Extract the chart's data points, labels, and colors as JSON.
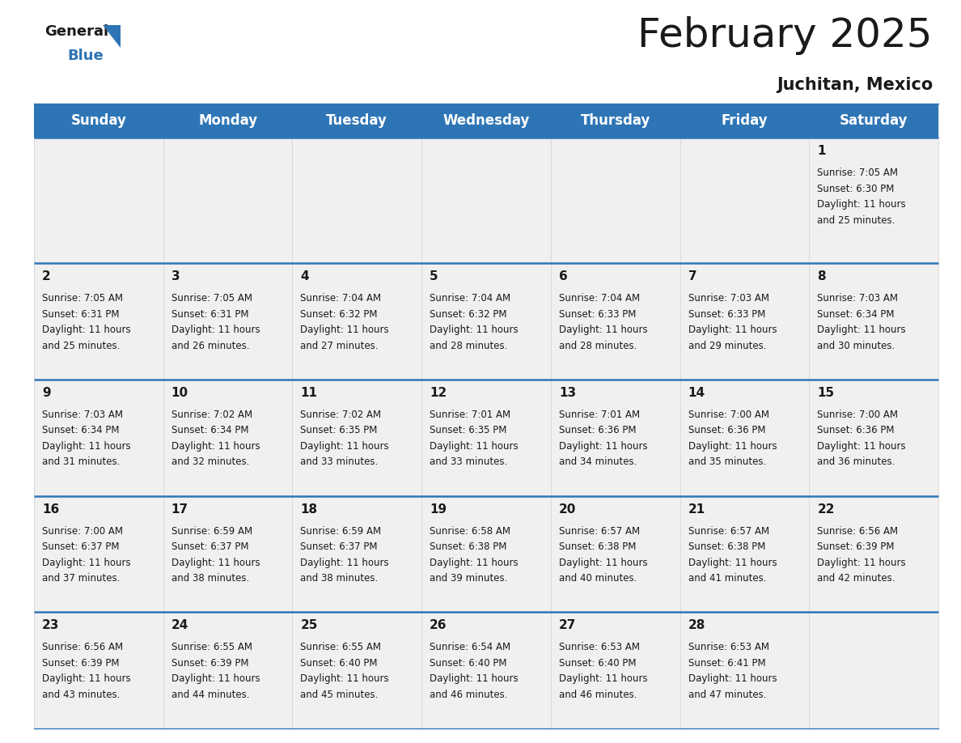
{
  "title": "February 2025",
  "subtitle": "Juchitan, Mexico",
  "header_color": "#2e75b6",
  "header_text_color": "#ffffff",
  "cell_bg": "#f0f0f0",
  "border_color": "#2e75b6",
  "text_color": "#1a1a1a",
  "days_of_week": [
    "Sunday",
    "Monday",
    "Tuesday",
    "Wednesday",
    "Thursday",
    "Friday",
    "Saturday"
  ],
  "calendar_data": [
    [
      null,
      null,
      null,
      null,
      null,
      null,
      {
        "day": 1,
        "sunrise": "7:05 AM",
        "sunset": "6:30 PM",
        "daylight_line1": "Daylight: 11 hours",
        "daylight_line2": "and 25 minutes."
      }
    ],
    [
      {
        "day": 2,
        "sunrise": "7:05 AM",
        "sunset": "6:31 PM",
        "daylight_line1": "Daylight: 11 hours",
        "daylight_line2": "and 25 minutes."
      },
      {
        "day": 3,
        "sunrise": "7:05 AM",
        "sunset": "6:31 PM",
        "daylight_line1": "Daylight: 11 hours",
        "daylight_line2": "and 26 minutes."
      },
      {
        "day": 4,
        "sunrise": "7:04 AM",
        "sunset": "6:32 PM",
        "daylight_line1": "Daylight: 11 hours",
        "daylight_line2": "and 27 minutes."
      },
      {
        "day": 5,
        "sunrise": "7:04 AM",
        "sunset": "6:32 PM",
        "daylight_line1": "Daylight: 11 hours",
        "daylight_line2": "and 28 minutes."
      },
      {
        "day": 6,
        "sunrise": "7:04 AM",
        "sunset": "6:33 PM",
        "daylight_line1": "Daylight: 11 hours",
        "daylight_line2": "and 28 minutes."
      },
      {
        "day": 7,
        "sunrise": "7:03 AM",
        "sunset": "6:33 PM",
        "daylight_line1": "Daylight: 11 hours",
        "daylight_line2": "and 29 minutes."
      },
      {
        "day": 8,
        "sunrise": "7:03 AM",
        "sunset": "6:34 PM",
        "daylight_line1": "Daylight: 11 hours",
        "daylight_line2": "and 30 minutes."
      }
    ],
    [
      {
        "day": 9,
        "sunrise": "7:03 AM",
        "sunset": "6:34 PM",
        "daylight_line1": "Daylight: 11 hours",
        "daylight_line2": "and 31 minutes."
      },
      {
        "day": 10,
        "sunrise": "7:02 AM",
        "sunset": "6:34 PM",
        "daylight_line1": "Daylight: 11 hours",
        "daylight_line2": "and 32 minutes."
      },
      {
        "day": 11,
        "sunrise": "7:02 AM",
        "sunset": "6:35 PM",
        "daylight_line1": "Daylight: 11 hours",
        "daylight_line2": "and 33 minutes."
      },
      {
        "day": 12,
        "sunrise": "7:01 AM",
        "sunset": "6:35 PM",
        "daylight_line1": "Daylight: 11 hours",
        "daylight_line2": "and 33 minutes."
      },
      {
        "day": 13,
        "sunrise": "7:01 AM",
        "sunset": "6:36 PM",
        "daylight_line1": "Daylight: 11 hours",
        "daylight_line2": "and 34 minutes."
      },
      {
        "day": 14,
        "sunrise": "7:00 AM",
        "sunset": "6:36 PM",
        "daylight_line1": "Daylight: 11 hours",
        "daylight_line2": "and 35 minutes."
      },
      {
        "day": 15,
        "sunrise": "7:00 AM",
        "sunset": "6:36 PM",
        "daylight_line1": "Daylight: 11 hours",
        "daylight_line2": "and 36 minutes."
      }
    ],
    [
      {
        "day": 16,
        "sunrise": "7:00 AM",
        "sunset": "6:37 PM",
        "daylight_line1": "Daylight: 11 hours",
        "daylight_line2": "and 37 minutes."
      },
      {
        "day": 17,
        "sunrise": "6:59 AM",
        "sunset": "6:37 PM",
        "daylight_line1": "Daylight: 11 hours",
        "daylight_line2": "and 38 minutes."
      },
      {
        "day": 18,
        "sunrise": "6:59 AM",
        "sunset": "6:37 PM",
        "daylight_line1": "Daylight: 11 hours",
        "daylight_line2": "and 38 minutes."
      },
      {
        "day": 19,
        "sunrise": "6:58 AM",
        "sunset": "6:38 PM",
        "daylight_line1": "Daylight: 11 hours",
        "daylight_line2": "and 39 minutes."
      },
      {
        "day": 20,
        "sunrise": "6:57 AM",
        "sunset": "6:38 PM",
        "daylight_line1": "Daylight: 11 hours",
        "daylight_line2": "and 40 minutes."
      },
      {
        "day": 21,
        "sunrise": "6:57 AM",
        "sunset": "6:38 PM",
        "daylight_line1": "Daylight: 11 hours",
        "daylight_line2": "and 41 minutes."
      },
      {
        "day": 22,
        "sunrise": "6:56 AM",
        "sunset": "6:39 PM",
        "daylight_line1": "Daylight: 11 hours",
        "daylight_line2": "and 42 minutes."
      }
    ],
    [
      {
        "day": 23,
        "sunrise": "6:56 AM",
        "sunset": "6:39 PM",
        "daylight_line1": "Daylight: 11 hours",
        "daylight_line2": "and 43 minutes."
      },
      {
        "day": 24,
        "sunrise": "6:55 AM",
        "sunset": "6:39 PM",
        "daylight_line1": "Daylight: 11 hours",
        "daylight_line2": "and 44 minutes."
      },
      {
        "day": 25,
        "sunrise": "6:55 AM",
        "sunset": "6:40 PM",
        "daylight_line1": "Daylight: 11 hours",
        "daylight_line2": "and 45 minutes."
      },
      {
        "day": 26,
        "sunrise": "6:54 AM",
        "sunset": "6:40 PM",
        "daylight_line1": "Daylight: 11 hours",
        "daylight_line2": "and 46 minutes."
      },
      {
        "day": 27,
        "sunrise": "6:53 AM",
        "sunset": "6:40 PM",
        "daylight_line1": "Daylight: 11 hours",
        "daylight_line2": "and 46 minutes."
      },
      {
        "day": 28,
        "sunrise": "6:53 AM",
        "sunset": "6:41 PM",
        "daylight_line1": "Daylight: 11 hours",
        "daylight_line2": "and 47 minutes."
      },
      null
    ]
  ],
  "title_fontsize": 36,
  "subtitle_fontsize": 15,
  "header_fontsize": 12,
  "day_num_fontsize": 11,
  "cell_text_fontsize": 8.5,
  "logo_general_color": "#1a1a1a",
  "logo_blue_color": "#2e75b6",
  "logo_triangle_color": "#2e75b6"
}
